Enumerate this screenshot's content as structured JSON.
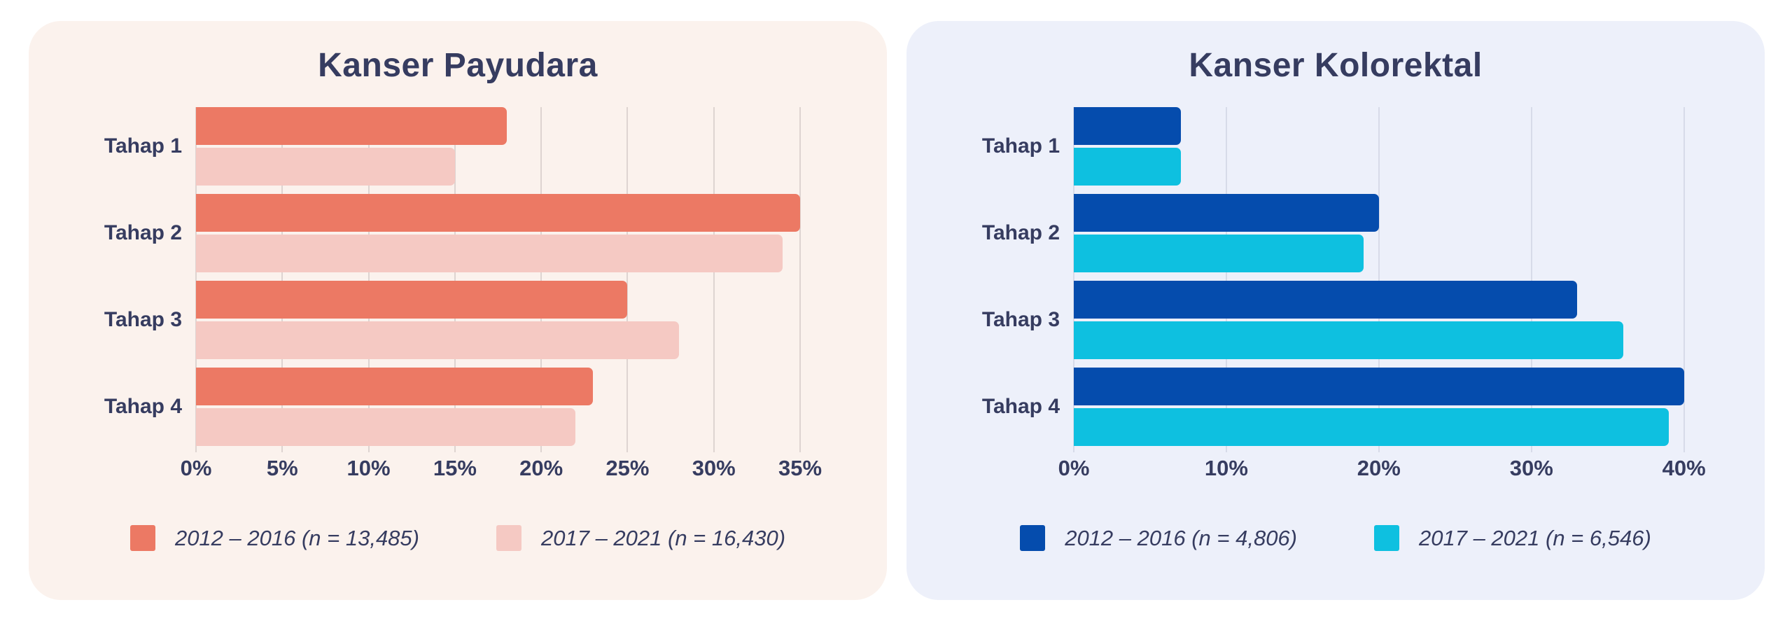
{
  "page": {
    "background": "#ffffff",
    "text_color": "#363c60"
  },
  "chart_data": [
    {
      "type": "bar",
      "orientation": "horizontal",
      "title": "Kanser Payudara",
      "categories": [
        "Tahap 1",
        "Tahap 2",
        "Tahap 3",
        "Tahap 4"
      ],
      "series": [
        {
          "name": "2012 – 2016 (n = 13,485)",
          "color": "#ec7964",
          "values": [
            18,
            35,
            25,
            23
          ]
        },
        {
          "name": "2017 – 2021 (n = 16,430)",
          "color": "#f5c9c3",
          "values": [
            15,
            34,
            28,
            22
          ]
        }
      ],
      "value_unit": "%",
      "xlim": [
        0,
        36.5
      ],
      "x_ticks": [
        {
          "label": "0%",
          "value": 0
        },
        {
          "label": "5%",
          "value": 5
        },
        {
          "label": "10%",
          "value": 10
        },
        {
          "label": "15%",
          "value": 15
        },
        {
          "label": "20%",
          "value": 20
        },
        {
          "label": "25%",
          "value": 25
        },
        {
          "label": "30%",
          "value": 30
        },
        {
          "label": "35%",
          "value": 35
        }
      ],
      "grid": true,
      "legend_position": "bottom",
      "card_background": "#fbf2ed",
      "grid_color": "#ded4d1"
    },
    {
      "type": "bar",
      "orientation": "horizontal",
      "title": "Kanser Kolorektal",
      "categories": [
        "Tahap 1",
        "Tahap 2",
        "Tahap 3",
        "Tahap 4"
      ],
      "series": [
        {
          "name": "2012 – 2016 (n = 4,806)",
          "color": "#054cad",
          "values": [
            7,
            20,
            33,
            40
          ]
        },
        {
          "name": "2017 – 2021 (n = 6,546)",
          "color": "#0ec0e0",
          "values": [
            7,
            19,
            36,
            39
          ]
        }
      ],
      "value_unit": "%",
      "xlim": [
        0,
        41.3
      ],
      "x_ticks": [
        {
          "label": "0%",
          "value": 0
        },
        {
          "label": "10%",
          "value": 10
        },
        {
          "label": "20%",
          "value": 20
        },
        {
          "label": "30%",
          "value": 30
        },
        {
          "label": "40%",
          "value": 40
        }
      ],
      "grid": true,
      "legend_position": "bottom",
      "card_background": "#edf0fa",
      "grid_color": "#d7dbe9"
    }
  ]
}
